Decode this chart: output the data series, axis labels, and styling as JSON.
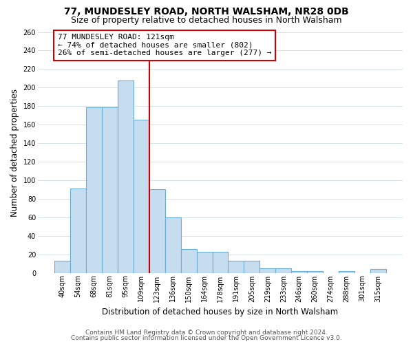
{
  "title": "77, MUNDESLEY ROAD, NORTH WALSHAM, NR28 0DB",
  "subtitle": "Size of property relative to detached houses in North Walsham",
  "xlabel": "Distribution of detached houses by size in North Walsham",
  "ylabel": "Number of detached properties",
  "bar_labels": [
    "40sqm",
    "54sqm",
    "68sqm",
    "81sqm",
    "95sqm",
    "109sqm",
    "123sqm",
    "136sqm",
    "150sqm",
    "164sqm",
    "178sqm",
    "191sqm",
    "205sqm",
    "219sqm",
    "233sqm",
    "246sqm",
    "260sqm",
    "274sqm",
    "288sqm",
    "301sqm",
    "315sqm"
  ],
  "bar_values": [
    13,
    91,
    179,
    179,
    208,
    165,
    90,
    60,
    26,
    23,
    23,
    13,
    13,
    5,
    5,
    2,
    2,
    0,
    2,
    0,
    4
  ],
  "bar_color": "#c6dcef",
  "bar_edge_color": "#6aaed6",
  "property_line_color": "#cc0000",
  "annotation_line1": "77 MUNDESLEY ROAD: 121sqm",
  "annotation_line2": "← 74% of detached houses are smaller (802)",
  "annotation_line3": "26% of semi-detached houses are larger (277) →",
  "annotation_box_color": "#ffffff",
  "annotation_box_edge_color": "#cc0000",
  "ylim": [
    0,
    260
  ],
  "yticks": [
    0,
    20,
    40,
    60,
    80,
    100,
    120,
    140,
    160,
    180,
    200,
    220,
    240,
    260
  ],
  "footer_line1": "Contains HM Land Registry data © Crown copyright and database right 2024.",
  "footer_line2": "Contains public sector information licensed under the Open Government Licence v3.0.",
  "background_color": "#ffffff",
  "grid_color": "#d0dde8",
  "title_fontsize": 10,
  "subtitle_fontsize": 9,
  "axis_label_fontsize": 8.5,
  "tick_fontsize": 7,
  "annotation_fontsize": 8,
  "footer_fontsize": 6.5
}
